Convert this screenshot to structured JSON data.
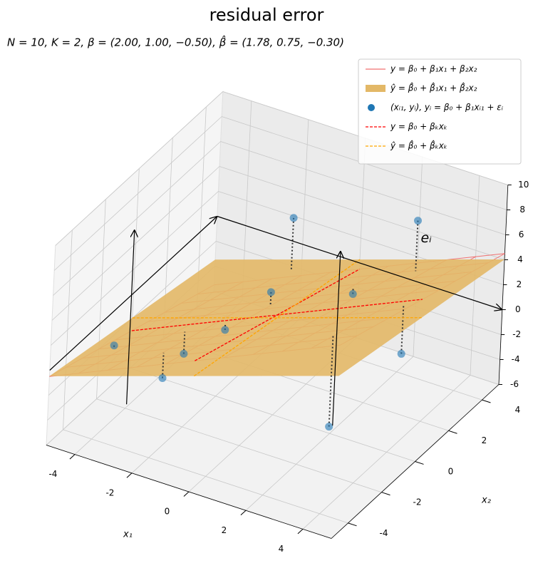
{
  "chart_data": {
    "type": "scatter3d",
    "title": "residual error",
    "subtitle": "N = 10, K = 2, β = (2.00, 1.00, −0.50), β̂ = (1.78, 0.75, −0.30)",
    "xlabel": "x₁",
    "ylabel": "x₂",
    "xlim": [
      -5,
      5
    ],
    "ylim": [
      -5,
      5
    ],
    "zlim": [
      -6,
      10
    ],
    "xticks": [
      -4,
      -2,
      0,
      2,
      4
    ],
    "yticks": [
      -4,
      -2,
      0,
      2,
      4
    ],
    "zticks": [
      -6,
      -4,
      -2,
      0,
      2,
      4,
      6,
      8,
      10
    ],
    "grid": true,
    "beta": [
      2,
      1,
      -0.5
    ],
    "beta_hat": [
      1.78,
      0.75,
      -0.3
    ],
    "annotation": "eᵢ",
    "legend": "upper right",
    "series": [
      {
        "name": "y = β₀ + β₁x₁ + β₂x₂",
        "color": "#f07070",
        "style": "wireframe"
      },
      {
        "name": "ŷ = β̂₀ + β̂₁x₁ + β̂₂x₂",
        "color": "#e3b867",
        "style": "surface"
      },
      {
        "name": "(xᵢ₁, yᵢ), yᵢ = β₀ + β₁xᵢ₁ + εᵢ",
        "color": "#1f77b4",
        "style": "scatter",
        "x": [
          -4.2,
          -2.5,
          -2.2,
          -1.5,
          -0.8,
          -1.8,
          1.2,
          2.8,
          3.8,
          2.5
        ],
        "x2": [
          -2.5,
          -1.2,
          -3,
          -0.5,
          1,
          4,
          2.5,
          -1.5,
          1,
          4
        ],
        "values": [
          -0.5,
          -1.5,
          -1.0,
          0.3,
          2.0,
          3.5,
          1.5,
          -3.0,
          0.5,
          6.5
        ]
      },
      {
        "name": "y = β₀ + βₖxₖ",
        "color": "#ff0000",
        "style": "dashed-true"
      },
      {
        "name": "ŷ = β̂₀ + β̂ₖxₖ",
        "color": "#ffa500",
        "style": "dashed-fit"
      }
    ]
  }
}
